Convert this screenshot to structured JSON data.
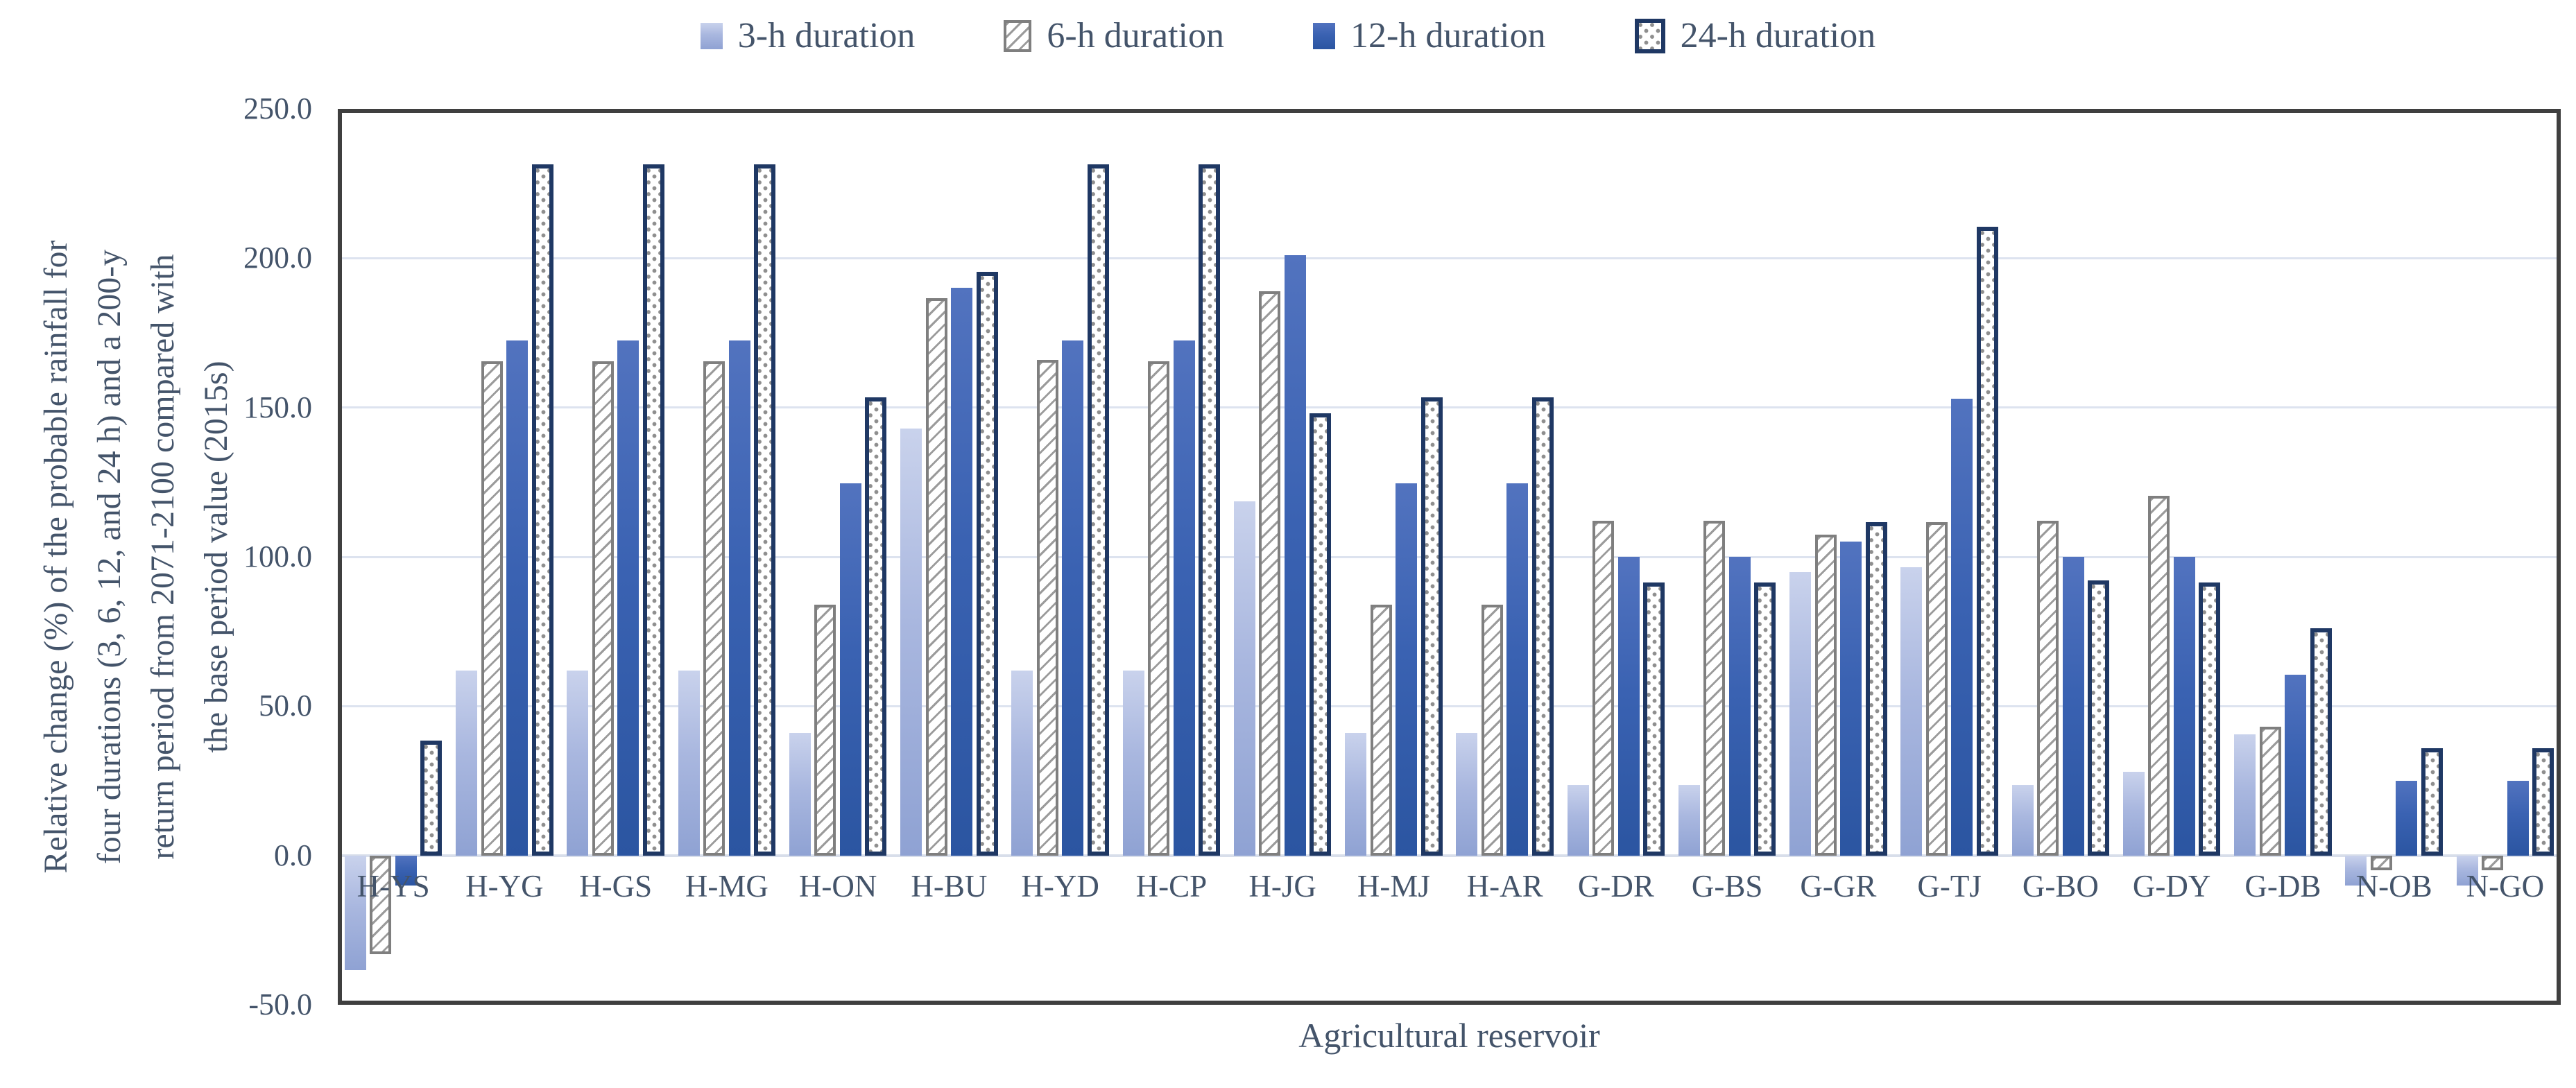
{
  "legend": {
    "items": [
      {
        "label": "3-h duration",
        "swatch": "light-blue-gradient",
        "color": "#a9b7df"
      },
      {
        "label": "6-h duration",
        "swatch": "gray-diagonal-hatch",
        "color": "#7f7f7f"
      },
      {
        "label": "12-h duration",
        "swatch": "blue-gradient",
        "color": "#3a62b2"
      },
      {
        "label": "24-h duration",
        "swatch": "navy-dotted",
        "color": "#1f3864"
      }
    ],
    "position": "top-center"
  },
  "y_axis": {
    "title_lines": [
      "Relative change  (%)  of the probable  rainfall  for",
      "four durations (3, 6, 12,  and 24 h)  and a 200-y",
      "return period from 2071-2100 compared  with",
      "the base  period value  (2015s)"
    ],
    "tick_labels": [
      "250.0",
      "200.0",
      "150.0",
      "100.0",
      "50.0",
      "0.0",
      "-50.0"
    ],
    "min": -50,
    "max": 250,
    "step": 50
  },
  "x_axis": {
    "title": "Agricultural  reservoir"
  },
  "chart_data": {
    "type": "bar",
    "title": "",
    "xlabel": "Agricultural reservoir",
    "ylabel": "Relative change (%) of the probable rainfall for four durations (3, 6, 12, and 24 h) and a 200-y return period from 2071-2100 compared with the base period value (2015s)",
    "ylim": [
      -50,
      250
    ],
    "grid": true,
    "legend_position": "top",
    "categories": [
      "H-YS",
      "H-YG",
      "H-GS",
      "H-MG",
      "H-ON",
      "H-BU",
      "H-YD",
      "H-CP",
      "H-JG",
      "H-MJ",
      "H-AR",
      "G-DR",
      "G-BS",
      "G-GR",
      "G-TJ",
      "G-BO",
      "G-DY",
      "G-DB",
      "N-OB",
      "N-GO"
    ],
    "series": [
      {
        "name": "3-h duration",
        "values": [
          -38.5,
          62.0,
          62.0,
          62.0,
          41.0,
          143.0,
          62.0,
          62.0,
          118.5,
          41.0,
          41.0,
          23.5,
          23.5,
          95.0,
          96.5,
          23.5,
          28.0,
          40.5,
          -10.0,
          -10.0
        ]
      },
      {
        "name": "6-h duration",
        "values": [
          -33.0,
          165.5,
          165.5,
          165.5,
          84.0,
          186.5,
          166.0,
          165.5,
          189.0,
          84.0,
          84.0,
          112.0,
          112.0,
          107.5,
          111.5,
          112.0,
          120.5,
          43.0,
          -5.0,
          -5.0
        ]
      },
      {
        "name": "12-h duration",
        "values": [
          -10.0,
          172.5,
          172.5,
          172.5,
          124.5,
          190.0,
          172.5,
          172.5,
          201.0,
          124.5,
          124.5,
          100.0,
          100.0,
          105.0,
          153.0,
          100.0,
          100.0,
          60.5,
          25.0,
          25.0
        ]
      },
      {
        "name": "24-h duration",
        "values": [
          38.5,
          231.5,
          231.5,
          231.5,
          153.5,
          195.5,
          231.5,
          231.5,
          148.0,
          153.5,
          153.5,
          91.5,
          91.5,
          111.5,
          210.5,
          92.0,
          91.5,
          76.0,
          36.0,
          36.0
        ]
      }
    ]
  },
  "colors": {
    "text": "#44546A",
    "plot_border": "#3f3f3f",
    "gridline": "#dde3ef",
    "series_3h_top": "#c9d2ec",
    "series_3h_bottom": "#8fa2d3",
    "series_6h_border": "#7f7f7f",
    "series_12h_top": "#5273bf",
    "series_12h_bottom": "#2b55a1",
    "series_24h_border": "#1f3864"
  }
}
